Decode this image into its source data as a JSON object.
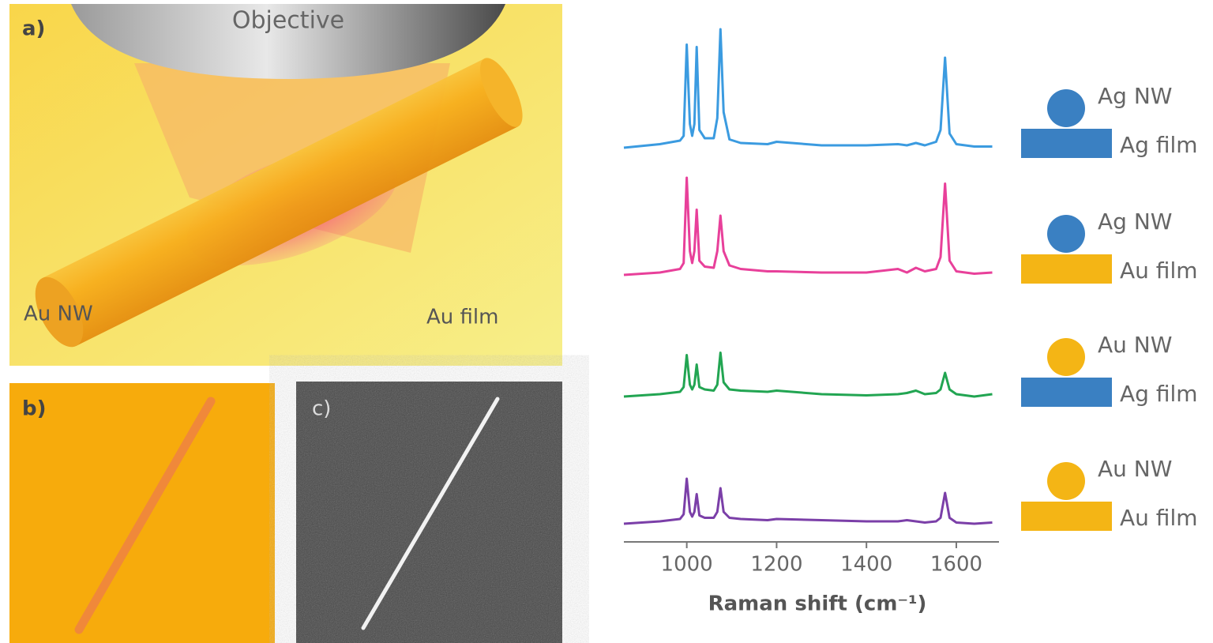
{
  "panels": {
    "a": {
      "label": "a)",
      "objective": "Objective",
      "nanowire": "Au NW",
      "film": "Au film"
    },
    "b": {
      "label": "b)"
    },
    "c": {
      "label": "c)"
    }
  },
  "chart_data": {
    "type": "line",
    "x_label": "Raman shift (cm⁻¹)",
    "x": [
      860,
      940,
      985,
      993,
      1000,
      1007,
      1012,
      1017,
      1022,
      1028,
      1040,
      1060,
      1068,
      1075,
      1082,
      1095,
      1120,
      1180,
      1200,
      1300,
      1400,
      1470,
      1490,
      1510,
      1530,
      1555,
      1565,
      1575,
      1585,
      1600,
      1640,
      1680
    ],
    "xlim": [
      860,
      1695
    ],
    "xticks": [
      1000,
      1200,
      1400,
      1600
    ],
    "series": [
      {
        "nanowire": "Ag NW",
        "film": "Ag film",
        "color": "#3b9be0",
        "nanowire_color": "#3a80c2",
        "film_color": "#3a80c2",
        "values": [
          0,
          0.03,
          0.06,
          0.1,
          0.87,
          0.2,
          0.1,
          0.2,
          0.85,
          0.15,
          0.08,
          0.08,
          0.25,
          1.0,
          0.3,
          0.07,
          0.04,
          0.03,
          0.05,
          0.02,
          0.02,
          0.03,
          0.02,
          0.04,
          0.02,
          0.05,
          0.15,
          0.76,
          0.12,
          0.03,
          0.01,
          0.01
        ]
      },
      {
        "nanowire": "Ag NW",
        "film": "Au film",
        "color": "#e8409a",
        "nanowire_color": "#3a80c2",
        "film_color": "#f4b515",
        "values": [
          0,
          0.02,
          0.05,
          0.1,
          0.82,
          0.2,
          0.1,
          0.2,
          0.55,
          0.12,
          0.07,
          0.06,
          0.2,
          0.5,
          0.2,
          0.08,
          0.05,
          0.03,
          0.03,
          0.02,
          0.02,
          0.05,
          0.02,
          0.06,
          0.03,
          0.05,
          0.15,
          0.77,
          0.12,
          0.03,
          0.01,
          0.02
        ]
      },
      {
        "nanowire": "Au NW",
        "film": "Ag film",
        "color": "#22a552",
        "nanowire_color": "#f4b515",
        "film_color": "#3a80c2",
        "values": [
          0,
          0.02,
          0.04,
          0.08,
          0.35,
          0.1,
          0.06,
          0.1,
          0.27,
          0.08,
          0.06,
          0.05,
          0.1,
          0.37,
          0.12,
          0.06,
          0.05,
          0.04,
          0.05,
          0.02,
          0.01,
          0.02,
          0.03,
          0.05,
          0.02,
          0.03,
          0.06,
          0.2,
          0.06,
          0.02,
          0.0,
          0.02
        ]
      },
      {
        "nanowire": "Au NW",
        "film": "Au film",
        "color": "#7b3fa8",
        "nanowire_color": "#f4b515",
        "film_color": "#f4b515",
        "values": [
          0,
          0.02,
          0.04,
          0.08,
          0.38,
          0.1,
          0.06,
          0.1,
          0.25,
          0.07,
          0.05,
          0.05,
          0.1,
          0.3,
          0.1,
          0.05,
          0.04,
          0.03,
          0.04,
          0.03,
          0.02,
          0.02,
          0.03,
          0.02,
          0.01,
          0.02,
          0.05,
          0.26,
          0.05,
          0.01,
          0.0,
          0.01
        ]
      }
    ]
  }
}
